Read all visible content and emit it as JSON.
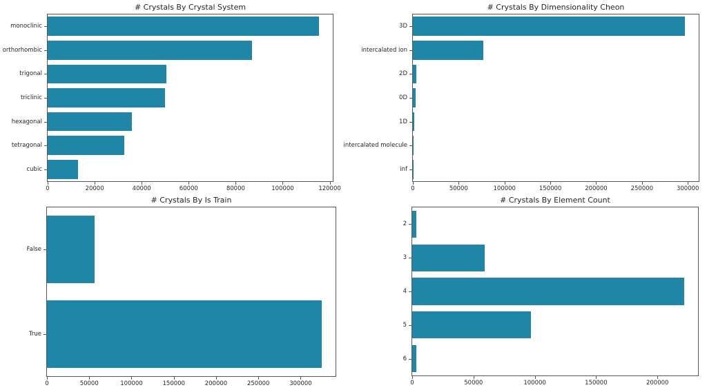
{
  "style": {
    "background": "#ffffff",
    "bar_color": "#2086a8",
    "axis_color": "#555555",
    "text_color": "#262626"
  },
  "chart_data": [
    {
      "type": "bar",
      "orientation": "horizontal",
      "title": "# Crystals By Crystal System",
      "categories": [
        "monoclinic",
        "orthorhombic",
        "trigonal",
        "triclinic",
        "hexagonal",
        "tetragonal",
        "cubic"
      ],
      "values": [
        115500,
        87000,
        50500,
        49900,
        35800,
        32500,
        12800
      ],
      "xticks": [
        0,
        20000,
        40000,
        60000,
        80000,
        100000,
        120000
      ],
      "xlim": [
        0,
        121300
      ],
      "xlabel": "",
      "ylabel": "",
      "grid": false,
      "legend": "none"
    },
    {
      "type": "bar",
      "orientation": "horizontal",
      "title": "# Crystals By Dimensionality Cheon",
      "categories": [
        "3D",
        "intercalated ion",
        "2D",
        "0D",
        "1D",
        "intercalated molecule",
        "inf"
      ],
      "values": [
        297000,
        77000,
        3700,
        3100,
        1300,
        350,
        120
      ],
      "xticks": [
        0,
        50000,
        100000,
        150000,
        200000,
        250000,
        300000
      ],
      "xlim": [
        0,
        311900
      ],
      "xlabel": "",
      "ylabel": "",
      "grid": false,
      "legend": "none"
    },
    {
      "type": "bar",
      "orientation": "horizontal",
      "title": "# Crystals By Is Train",
      "categories": [
        "False",
        "True"
      ],
      "values": [
        56500,
        325000
      ],
      "xticks": [
        0,
        50000,
        100000,
        150000,
        200000,
        250000,
        300000
      ],
      "xlim": [
        0,
        341250
      ],
      "xlabel": "",
      "ylabel": "",
      "grid": false,
      "legend": "none"
    },
    {
      "type": "bar",
      "orientation": "horizontal",
      "title": "# Crystals By Element Count",
      "categories": [
        "2",
        "3",
        "4",
        "5",
        "6"
      ],
      "values": [
        3300,
        59000,
        222000,
        97000,
        3500
      ],
      "xticks": [
        0,
        50000,
        100000,
        150000,
        200000
      ],
      "xlim": [
        0,
        233100
      ],
      "xlabel": "",
      "ylabel": "",
      "grid": false,
      "legend": "none"
    }
  ]
}
